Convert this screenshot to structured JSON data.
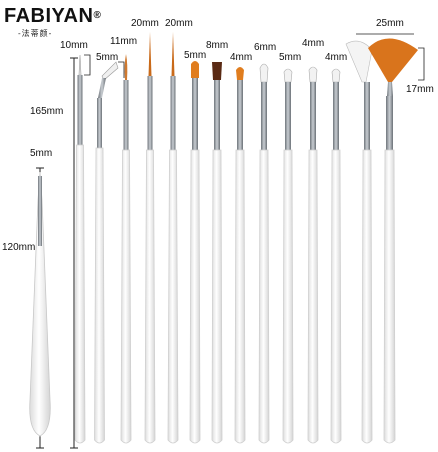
{
  "brand": {
    "name": "FABIYAN",
    "registered_mark": "®",
    "subtitle": "-法蒂颜-"
  },
  "measurements": {
    "tall_handle": "165mm",
    "short_handle": "120mm",
    "dot_tip": "5mm",
    "b1": "10mm",
    "b2": "5mm",
    "b3": "11mm",
    "b4": "20mm",
    "b5": "20mm",
    "b6": "5mm",
    "b7": "8mm",
    "b8": "4mm",
    "b9": "6mm",
    "b10": "5mm",
    "b11": "4mm",
    "b12": "4mm",
    "fan_width": "25mm",
    "fan_height": "17mm"
  },
  "colors": {
    "handle": "#f4f4f4",
    "handle_edge": "#cfcfcf",
    "ferrule": "#9aa0a6",
    "bristle_orange": "#d9741c",
    "bristle_brown": "#5a2a14",
    "bristle_white": "#f2f2f2",
    "line": "#222222"
  }
}
